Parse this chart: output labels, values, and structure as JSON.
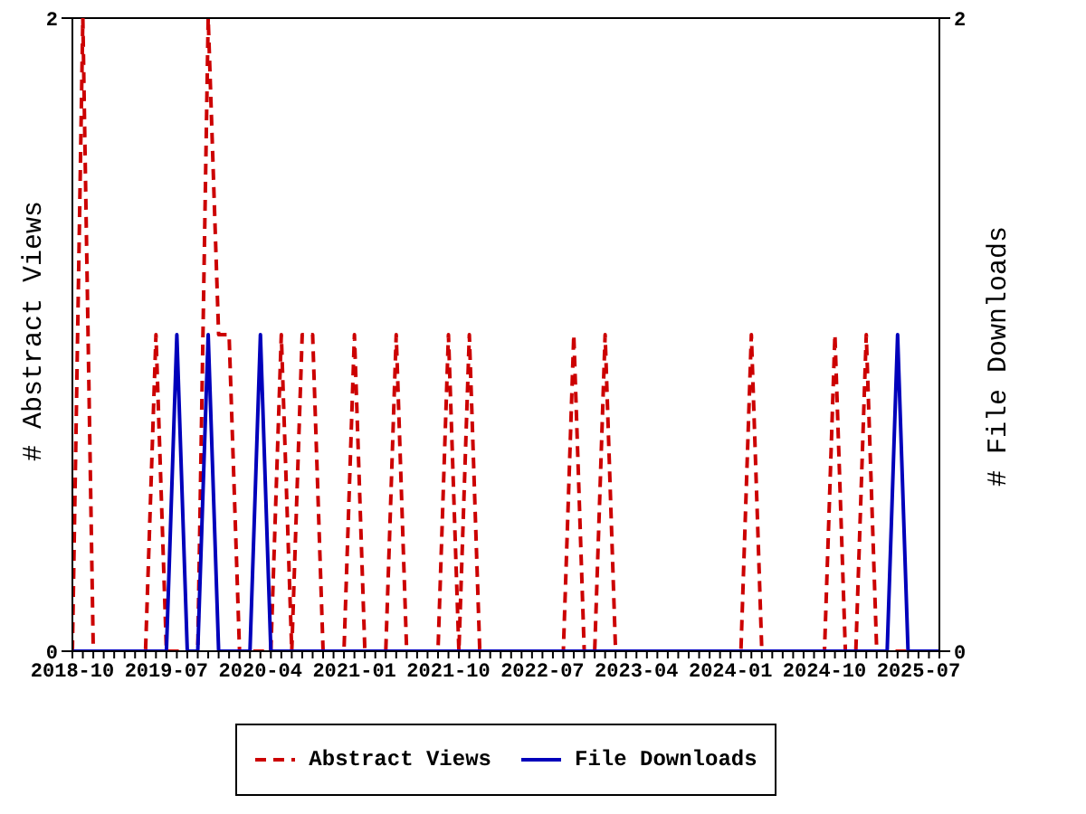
{
  "chart_data": {
    "type": "line",
    "ylabel": "# Abstract Views",
    "y2label": "# File Downloads",
    "x": [
      "2018-10",
      "2018-11",
      "2018-12",
      "2019-01",
      "2019-02",
      "2019-03",
      "2019-04",
      "2019-05",
      "2019-06",
      "2019-07",
      "2019-08",
      "2019-09",
      "2019-10",
      "2019-11",
      "2019-12",
      "2020-01",
      "2020-02",
      "2020-03",
      "2020-04",
      "2020-05",
      "2020-06",
      "2020-07",
      "2020-08",
      "2020-09",
      "2020-10",
      "2020-11",
      "2020-12",
      "2021-01",
      "2021-02",
      "2021-03",
      "2021-04",
      "2021-05",
      "2021-06",
      "2021-07",
      "2021-08",
      "2021-09",
      "2021-10",
      "2021-11",
      "2021-12",
      "2022-01",
      "2022-02",
      "2022-03",
      "2022-04",
      "2022-05",
      "2022-06",
      "2022-07",
      "2022-08",
      "2022-09",
      "2022-10",
      "2022-11",
      "2022-12",
      "2023-01",
      "2023-02",
      "2023-03",
      "2023-04",
      "2023-05",
      "2023-06",
      "2023-07",
      "2023-08",
      "2023-09",
      "2023-10",
      "2023-11",
      "2023-12",
      "2024-01",
      "2024-02",
      "2024-03",
      "2024-04",
      "2024-05",
      "2024-06",
      "2024-07",
      "2024-08",
      "2024-09",
      "2024-10",
      "2024-11",
      "2024-12",
      "2025-01",
      "2025-02",
      "2025-03",
      "2025-04",
      "2025-05",
      "2025-06",
      "2025-07",
      "2025-08",
      "2025-09"
    ],
    "series": [
      {
        "name": "Abstract Views",
        "color": "#cc0000",
        "line_style": "dashed",
        "values": [
          0,
          2,
          0,
          0,
          0,
          0,
          0,
          0,
          1,
          0,
          0,
          0,
          0,
          2,
          1,
          1,
          0,
          0,
          0,
          0,
          1,
          0,
          1,
          1,
          0,
          0,
          0,
          1,
          0,
          0,
          0,
          1,
          0,
          0,
          0,
          0,
          1,
          0,
          1,
          0,
          0,
          0,
          0,
          0,
          0,
          0,
          0,
          0,
          1,
          0,
          0,
          1,
          0,
          0,
          0,
          0,
          0,
          0,
          0,
          0,
          0,
          0,
          0,
          0,
          0,
          1,
          0,
          0,
          0,
          0,
          0,
          0,
          0,
          1,
          0,
          0,
          1,
          0,
          0,
          0,
          0,
          0,
          0,
          0
        ]
      },
      {
        "name": "File Downloads",
        "color": "#0000bb",
        "line_style": "solid",
        "axis": "y2",
        "values": [
          0,
          0,
          0,
          0,
          0,
          0,
          0,
          0,
          0,
          0,
          1,
          0,
          0,
          1,
          0,
          0,
          0,
          0,
          1,
          0,
          0,
          0,
          0,
          0,
          0,
          0,
          0,
          0,
          0,
          0,
          0,
          0,
          0,
          0,
          0,
          0,
          0,
          0,
          0,
          0,
          0,
          0,
          0,
          0,
          0,
          0,
          0,
          0,
          0,
          0,
          0,
          0,
          0,
          0,
          0,
          0,
          0,
          0,
          0,
          0,
          0,
          0,
          0,
          0,
          0,
          0,
          0,
          0,
          0,
          0,
          0,
          0,
          0,
          0,
          0,
          0,
          0,
          0,
          0,
          1,
          0,
          0,
          0,
          0
        ]
      }
    ],
    "xlim": [
      "2018-10",
      "2025-09"
    ],
    "xticks": [
      "2018-10",
      "2019-07",
      "2020-04",
      "2021-01",
      "2021-10",
      "2022-07",
      "2023-04",
      "2024-01",
      "2024-10",
      "2025-07"
    ],
    "ylim": [
      0,
      2
    ],
    "yticks": [
      0,
      2
    ],
    "y2lim": [
      0,
      2
    ],
    "y2ticks": [
      0,
      2
    ],
    "grid": false,
    "legend": "bottom",
    "marker": "none"
  }
}
